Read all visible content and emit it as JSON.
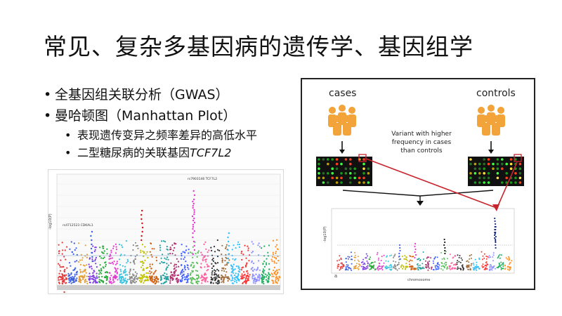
{
  "slide": {
    "title": "常见、复杂多基因病的遗传学、基因组学",
    "bullets": [
      {
        "text": "全基因组关联分析（GWAS）"
      },
      {
        "text": "曼哈顿图（Manhattan Plot）",
        "sub": [
          {
            "text": "表现遗传变异之频率差异的高低水平"
          },
          {
            "text_prefix": "二型糖尿病的关联基因",
            "gene": "TCF7L2"
          }
        ]
      }
    ],
    "left_figure": {
      "annotation_top": "rs7903146 TCF7L2",
      "annotation_left": "rs4712523 CDKAL1",
      "ylabel": "-log10(P)"
    },
    "right_figure": {
      "cases_label": "cases",
      "controls_label": "controls",
      "variant_note": "Variant with higher frequency in cases than controls",
      "xlabel": "chromosome",
      "ylabel": "-log10(P)",
      "panel_letter": "a"
    },
    "colors": {
      "people": "#f2a33a",
      "arrow_red": "#c8242b",
      "chip_bg": "#111111"
    }
  }
}
